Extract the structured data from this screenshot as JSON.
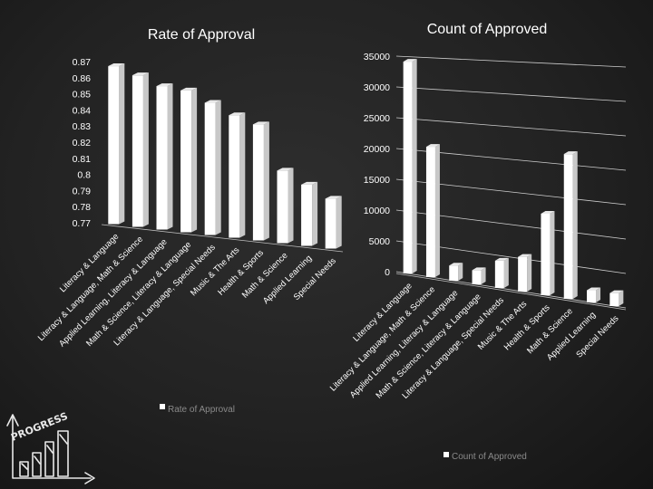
{
  "colors": {
    "background": "#222222",
    "bar_front": "#ffffff",
    "bar_side": "#c8c8c8",
    "bar_top": "#e8e8e8",
    "text": "#ffffff",
    "legend_text": "#8a8a8a"
  },
  "logo": {
    "text": "PROGRESS",
    "icon": "progress-bar-chart-icon"
  },
  "chart_data": [
    {
      "type": "bar",
      "title": "Rate of Approval",
      "categories": [
        "Literacy & Language",
        "Literacy & Language, Math & Science",
        "Applied Learning, Literacy & Language",
        "Math & Science, Literacy & Language",
        "Literacy & Language, Special Needs",
        "Music & The Arts",
        "Health & Sports",
        "Math & Science",
        "Applied Learning",
        "Special Needs"
      ],
      "series": [
        {
          "name": "Rate of Approval",
          "values": [
            0.868,
            0.864,
            0.859,
            0.858,
            0.852,
            0.846,
            0.842,
            0.815,
            0.808,
            0.801
          ]
        }
      ],
      "yticks": [
        "0.87",
        "0.86",
        "0.85",
        "0.84",
        "0.83",
        "0.82",
        "0.81",
        "0.8",
        "0.79",
        "0.78",
        "0.77"
      ],
      "ylim": [
        0.77,
        0.87
      ],
      "grid": false,
      "legend": "bottom"
    },
    {
      "type": "bar",
      "title": "Count of Approved",
      "categories": [
        "Literacy & Language",
        "Literacy & Language, Math & Science",
        "Applied Learning, Literacy & Language",
        "Math & Science, Literacy & Language",
        "Literacy & Language, Special Needs",
        "Music & The Arts",
        "Health & Sports",
        "Math & Science",
        "Applied Learning",
        "Special Needs"
      ],
      "series": [
        {
          "name": "Count of Approved",
          "values": [
            34200,
            20800,
            2400,
            2200,
            4200,
            5300,
            12300,
            21600,
            1800,
            1900
          ]
        }
      ],
      "yticks": [
        "35000",
        "30000",
        "25000",
        "20000",
        "15000",
        "10000",
        "5000",
        "0"
      ],
      "ylim": [
        0,
        35000
      ],
      "grid": true,
      "legend": "bottom"
    }
  ]
}
